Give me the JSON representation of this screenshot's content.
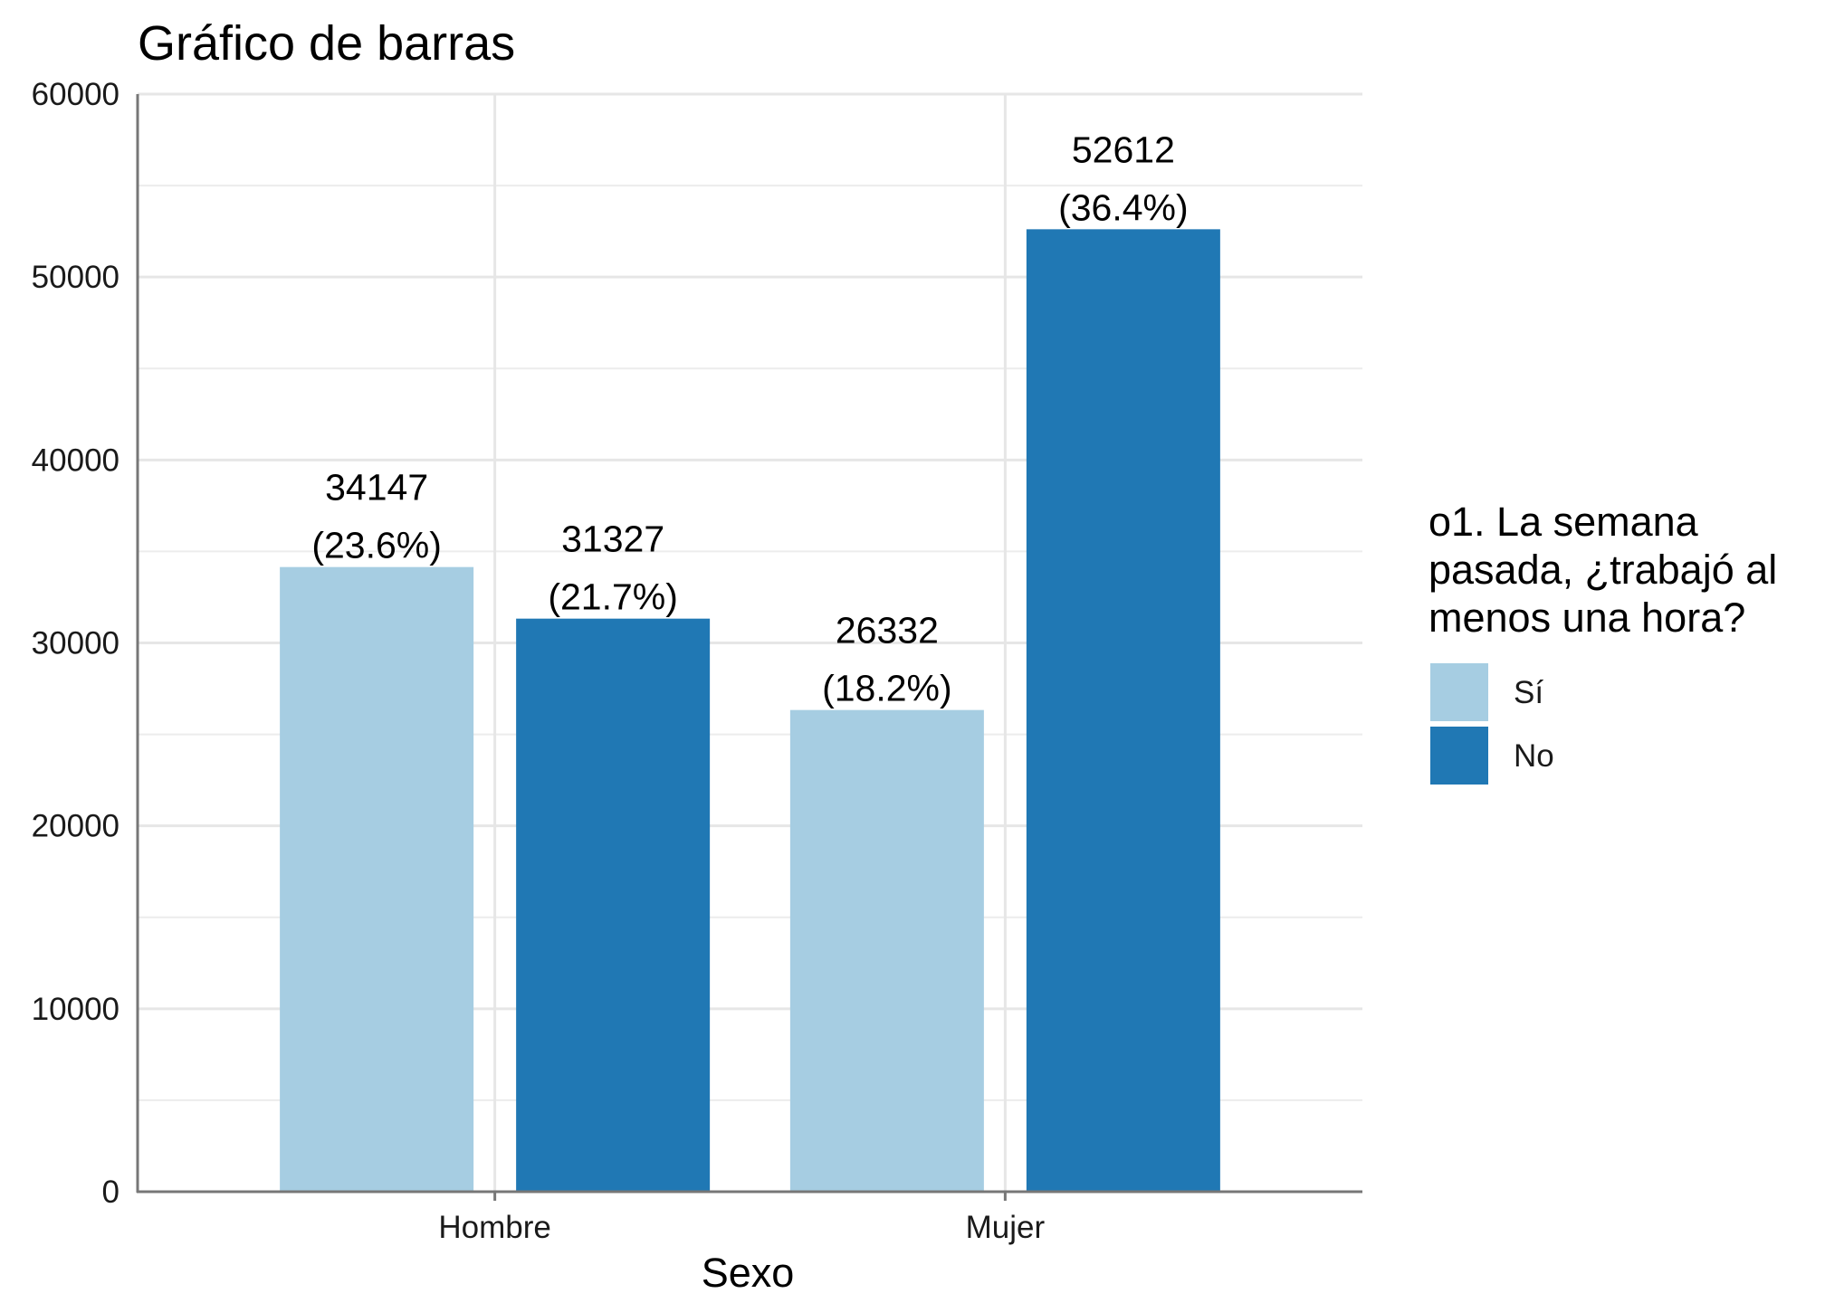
{
  "chart_data": {
    "type": "bar",
    "title": "Gráfico de barras",
    "xlabel": "Sexo",
    "ylabel": "",
    "ylim": [
      0,
      60000
    ],
    "yticks": [
      0,
      10000,
      20000,
      30000,
      40000,
      50000,
      60000
    ],
    "grid": true,
    "categories": [
      "Hombre",
      "Mujer"
    ],
    "legend": {
      "title_lines": [
        "o1. La semana",
        "pasada, ¿trabajó al",
        "menos una hora?"
      ],
      "placement": "right"
    },
    "series": [
      {
        "name": "Sí",
        "color": "#a6cde2",
        "values": [
          34147,
          26332
        ],
        "labels": [
          "(23.6%)",
          "(18.2%)"
        ]
      },
      {
        "name": "No",
        "color": "#2078b4",
        "values": [
          31327,
          52612
        ],
        "labels": [
          "(21.7%)",
          "(36.4%)"
        ]
      }
    ]
  }
}
